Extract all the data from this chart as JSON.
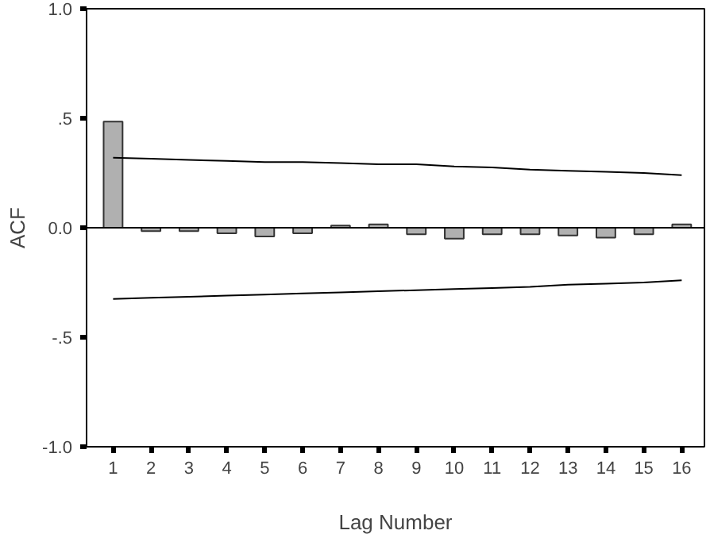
{
  "chart_data": {
    "type": "bar",
    "xlabel": "Lag Number",
    "ylabel": "ACF",
    "x": [
      1,
      2,
      3,
      4,
      5,
      6,
      7,
      8,
      9,
      10,
      11,
      12,
      13,
      14,
      15,
      16
    ],
    "xlim": [
      0.3,
      16.6
    ],
    "xticks": [
      1,
      2,
      3,
      4,
      5,
      6,
      7,
      8,
      9,
      10,
      11,
      12,
      13,
      14,
      15,
      16
    ],
    "ylim": [
      -1.0,
      1.0
    ],
    "yticks": [
      {
        "value": -1.0,
        "label": "-1.0"
      },
      {
        "value": -0.5,
        "label": "-.5"
      },
      {
        "value": 0.0,
        "label": "0.0"
      },
      {
        "value": 0.5,
        "label": ".5"
      },
      {
        "value": 1.0,
        "label": "1.0"
      }
    ],
    "series": [
      {
        "color": "#b0b0b0",
        "values": [
          0.485,
          -0.015,
          -0.015,
          -0.025,
          -0.04,
          -0.025,
          0.01,
          0.015,
          -0.03,
          -0.05,
          -0.03,
          -0.03,
          -0.035,
          -0.045,
          -0.03,
          0.015
        ]
      },
      {
        "type": "line",
        "color": "#000000",
        "values": [
          0.32,
          0.315,
          0.31,
          0.305,
          0.3,
          0.3,
          0.295,
          0.29,
          0.29,
          0.28,
          0.275,
          0.265,
          0.26,
          0.255,
          0.25,
          0.24
        ]
      },
      {
        "type": "line",
        "color": "#000000",
        "values": [
          -0.325,
          -0.32,
          -0.315,
          -0.31,
          -0.305,
          -0.3,
          -0.295,
          -0.29,
          -0.285,
          -0.28,
          -0.275,
          -0.27,
          -0.26,
          -0.255,
          -0.25,
          -0.24
        ]
      }
    ],
    "ref_lines": [
      {
        "axis": "y",
        "value": 0.0,
        "color": "#000000"
      }
    ],
    "grid": false
  }
}
